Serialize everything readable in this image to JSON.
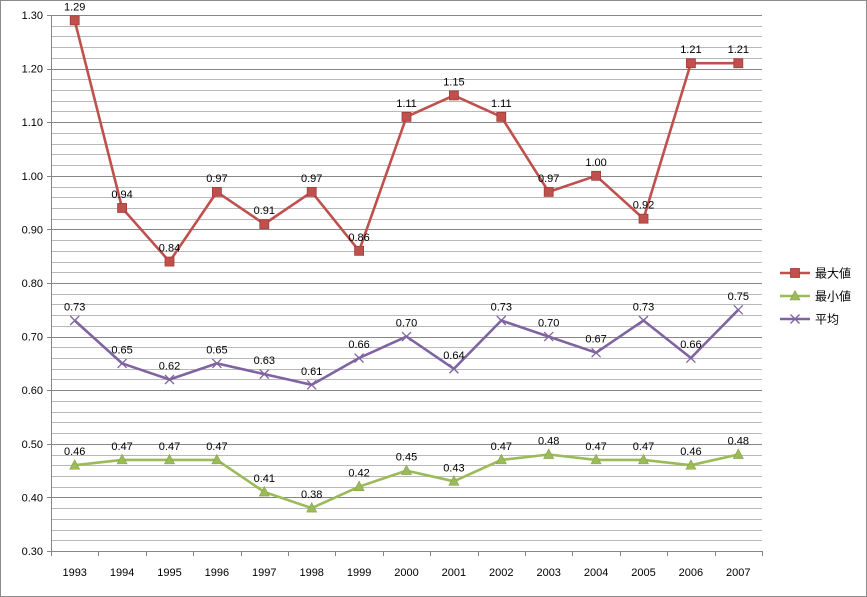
{
  "chart_data": {
    "type": "line",
    "title": "",
    "xlabel": "",
    "ylabel": "",
    "ylim": [
      0.3,
      1.3
    ],
    "ytick_step": 0.1,
    "minor_grid_step": 0.02,
    "ytick_labels": [
      "0.30",
      "0.40",
      "0.50",
      "0.60",
      "0.70",
      "0.80",
      "0.90",
      "1.00",
      "1.10",
      "1.20",
      "1.30"
    ],
    "categories": [
      "1993",
      "1994",
      "1995",
      "1996",
      "1997",
      "1998",
      "1999",
      "2000",
      "2001",
      "2002",
      "2003",
      "2004",
      "2005",
      "2006",
      "2007"
    ],
    "series": [
      {
        "name": "最大値",
        "color": "#c0504d",
        "marker": "square",
        "values": [
          1.29,
          0.94,
          0.84,
          0.97,
          0.91,
          0.97,
          0.86,
          1.11,
          1.15,
          1.11,
          0.97,
          1.0,
          0.92,
          1.21,
          1.21
        ],
        "labels": [
          "1.29",
          "0.94",
          "0.84",
          "0.97",
          "0.91",
          "0.97",
          "0.86",
          "1.11",
          "1.15",
          "1.11",
          "0.97",
          "1.00",
          "0.92",
          "1.21",
          "1.21"
        ]
      },
      {
        "name": "最小値",
        "color": "#9bbb59",
        "marker": "triangle",
        "values": [
          0.46,
          0.47,
          0.47,
          0.47,
          0.41,
          0.38,
          0.42,
          0.45,
          0.43,
          0.47,
          0.48,
          0.47,
          0.47,
          0.46,
          0.48
        ],
        "labels": [
          "0.46",
          "0.47",
          "0.47",
          "0.47",
          "0.41",
          "0.38",
          "0.42",
          "0.45",
          "0.43",
          "0.47",
          "0.48",
          "0.47",
          "0.47",
          "0.46",
          "0.48"
        ]
      },
      {
        "name": "平均",
        "color": "#8064a2",
        "marker": "x",
        "values": [
          0.73,
          0.65,
          0.62,
          0.65,
          0.63,
          0.61,
          0.66,
          0.7,
          0.64,
          0.73,
          0.7,
          0.67,
          0.73,
          0.66,
          0.75
        ],
        "labels": [
          "0.73",
          "0.65",
          "0.62",
          "0.65",
          "0.63",
          "0.61",
          "0.66",
          "0.70",
          "0.64",
          "0.73",
          "0.70",
          "0.67",
          "0.73",
          "0.66",
          "0.75"
        ]
      }
    ],
    "legend_position": "right",
    "grid": true
  }
}
